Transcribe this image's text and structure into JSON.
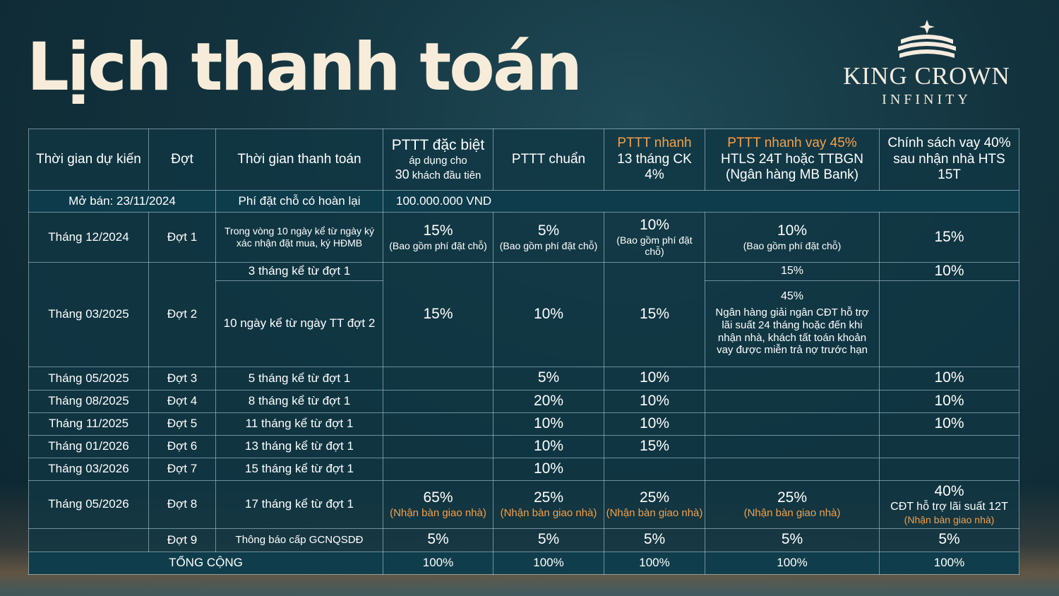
{
  "title": "Lịch thanh toán",
  "logo": {
    "name": "KING CROWN",
    "sub": "INFINITY"
  },
  "headers": {
    "expected_time": "Thời gian dự kiến",
    "installment": "Đợt",
    "payment_time": "Thời gian thanh toán",
    "special": {
      "line1": "PTTT đặc biệt",
      "line2": "áp dụng cho",
      "line3_num": "30",
      "line3_text": " khách đầu tiên"
    },
    "standard": "PTTT chuẩn",
    "fast": {
      "line1": "PTTT nhanh",
      "line2": "13 tháng CK 4%"
    },
    "fast_loan": {
      "line1": "PTTT nhanh vay 45%",
      "line2": "HTLS 24T hoặc TTBGN",
      "line3": "(Ngân hàng MB Bank)"
    },
    "loan_policy": {
      "line1": "Chính sách vay 40%",
      "line2": "sau nhận nhà HTS 15T"
    }
  },
  "opening": {
    "date": "Mở bán: 23/11/2024",
    "label": "Phí đặt chỗ có hoàn lại",
    "amount": "100.000.000 VND"
  },
  "row1": {
    "month": "Tháng 12/2024",
    "inst": "Đợt 1",
    "time": "Trong vòng 10 ngày kể từ ngày ký xác nhận đặt mua, ký HĐMB",
    "special": "15%",
    "special_note": "(Bao gồm phí đặt chỗ)",
    "standard": "5%",
    "standard_note": "(Bao gồm phí đặt chỗ)",
    "fast": "10%",
    "fast_note": "(Bao gồm phí đặt chỗ)",
    "fast_loan": "10%",
    "fast_loan_note": "(Bao gồm phí đặt chỗ)",
    "loan_policy": "15%"
  },
  "row2": {
    "month": "Tháng 03/2025",
    "inst": "Đợt 2",
    "time_a": "3 tháng kể từ đợt 1",
    "time_b": "10 ngày kể từ ngày TT đợt 2",
    "special": "15%",
    "standard": "10%",
    "fast": "15%",
    "fast_loan_a": "15%",
    "loan_policy_a": "10%",
    "fast_loan_b": "45%",
    "fast_loan_b_note": "Ngân hàng giải ngân CĐT hỗ trợ lãi suất 24 tháng hoặc đến khi nhận nhà, khách tất toán khoản vay được miễn trả nợ trước hạn"
  },
  "rows_simple": [
    {
      "month": "Tháng 05/2025",
      "inst": "Đợt 3",
      "time": "5 tháng kể từ đợt 1",
      "standard": "5%",
      "fast": "10%",
      "loan_policy": "10%"
    },
    {
      "month": "Tháng 08/2025",
      "inst": "Đợt 4",
      "time": "8 tháng kể từ đợt 1",
      "standard": "20%",
      "fast": "10%",
      "loan_policy": "10%"
    },
    {
      "month": "Tháng 11/2025",
      "inst": "Đợt 5",
      "time": "11 tháng kể từ đợt 1",
      "standard": "10%",
      "fast": "10%",
      "loan_policy": "10%"
    },
    {
      "month": "Tháng 01/2026",
      "inst": "Đợt 6",
      "time": "13 tháng kể từ đợt 1",
      "standard": "10%",
      "fast": "15%",
      "loan_policy": ""
    },
    {
      "month": "Tháng 03/2026",
      "inst": "Đợt 7",
      "time": "15 tháng kể từ đợt 1",
      "standard": "10%",
      "fast": "",
      "loan_policy": ""
    }
  ],
  "row8": {
    "month": "Tháng 05/2026",
    "inst": "Đợt 8",
    "time": "17 tháng kể từ đợt 1",
    "special": "65%",
    "special_note": "(Nhận bàn giao nhà)",
    "standard": "25%",
    "standard_note": "(Nhận bàn giao nhà)",
    "fast": "25%",
    "fast_note": "(Nhận bàn giao nhà)",
    "fast_loan": "25%",
    "fast_loan_note": "(Nhận bàn giao nhà)",
    "loan_policy": "40%",
    "loan_policy_sub": "CĐT hỗ trợ lãi suất 12T",
    "loan_policy_note": "(Nhận bàn giao nhà)"
  },
  "row9": {
    "month": "",
    "inst": "Đợt 9",
    "time": "Thông báo cấp GCNQSDĐ",
    "special": "5%",
    "standard": "5%",
    "fast": "5%",
    "fast_loan": "5%",
    "loan_policy": "5%"
  },
  "total": {
    "label": "TỔNG CỘNG",
    "special": "100%",
    "standard": "100%",
    "fast": "100%",
    "fast_loan": "100%",
    "loan_policy": "100%"
  },
  "colors": {
    "accent_orange": "#f5a04a",
    "title_cream": "#f6ecd9",
    "bg_teal": "#12323d"
  }
}
